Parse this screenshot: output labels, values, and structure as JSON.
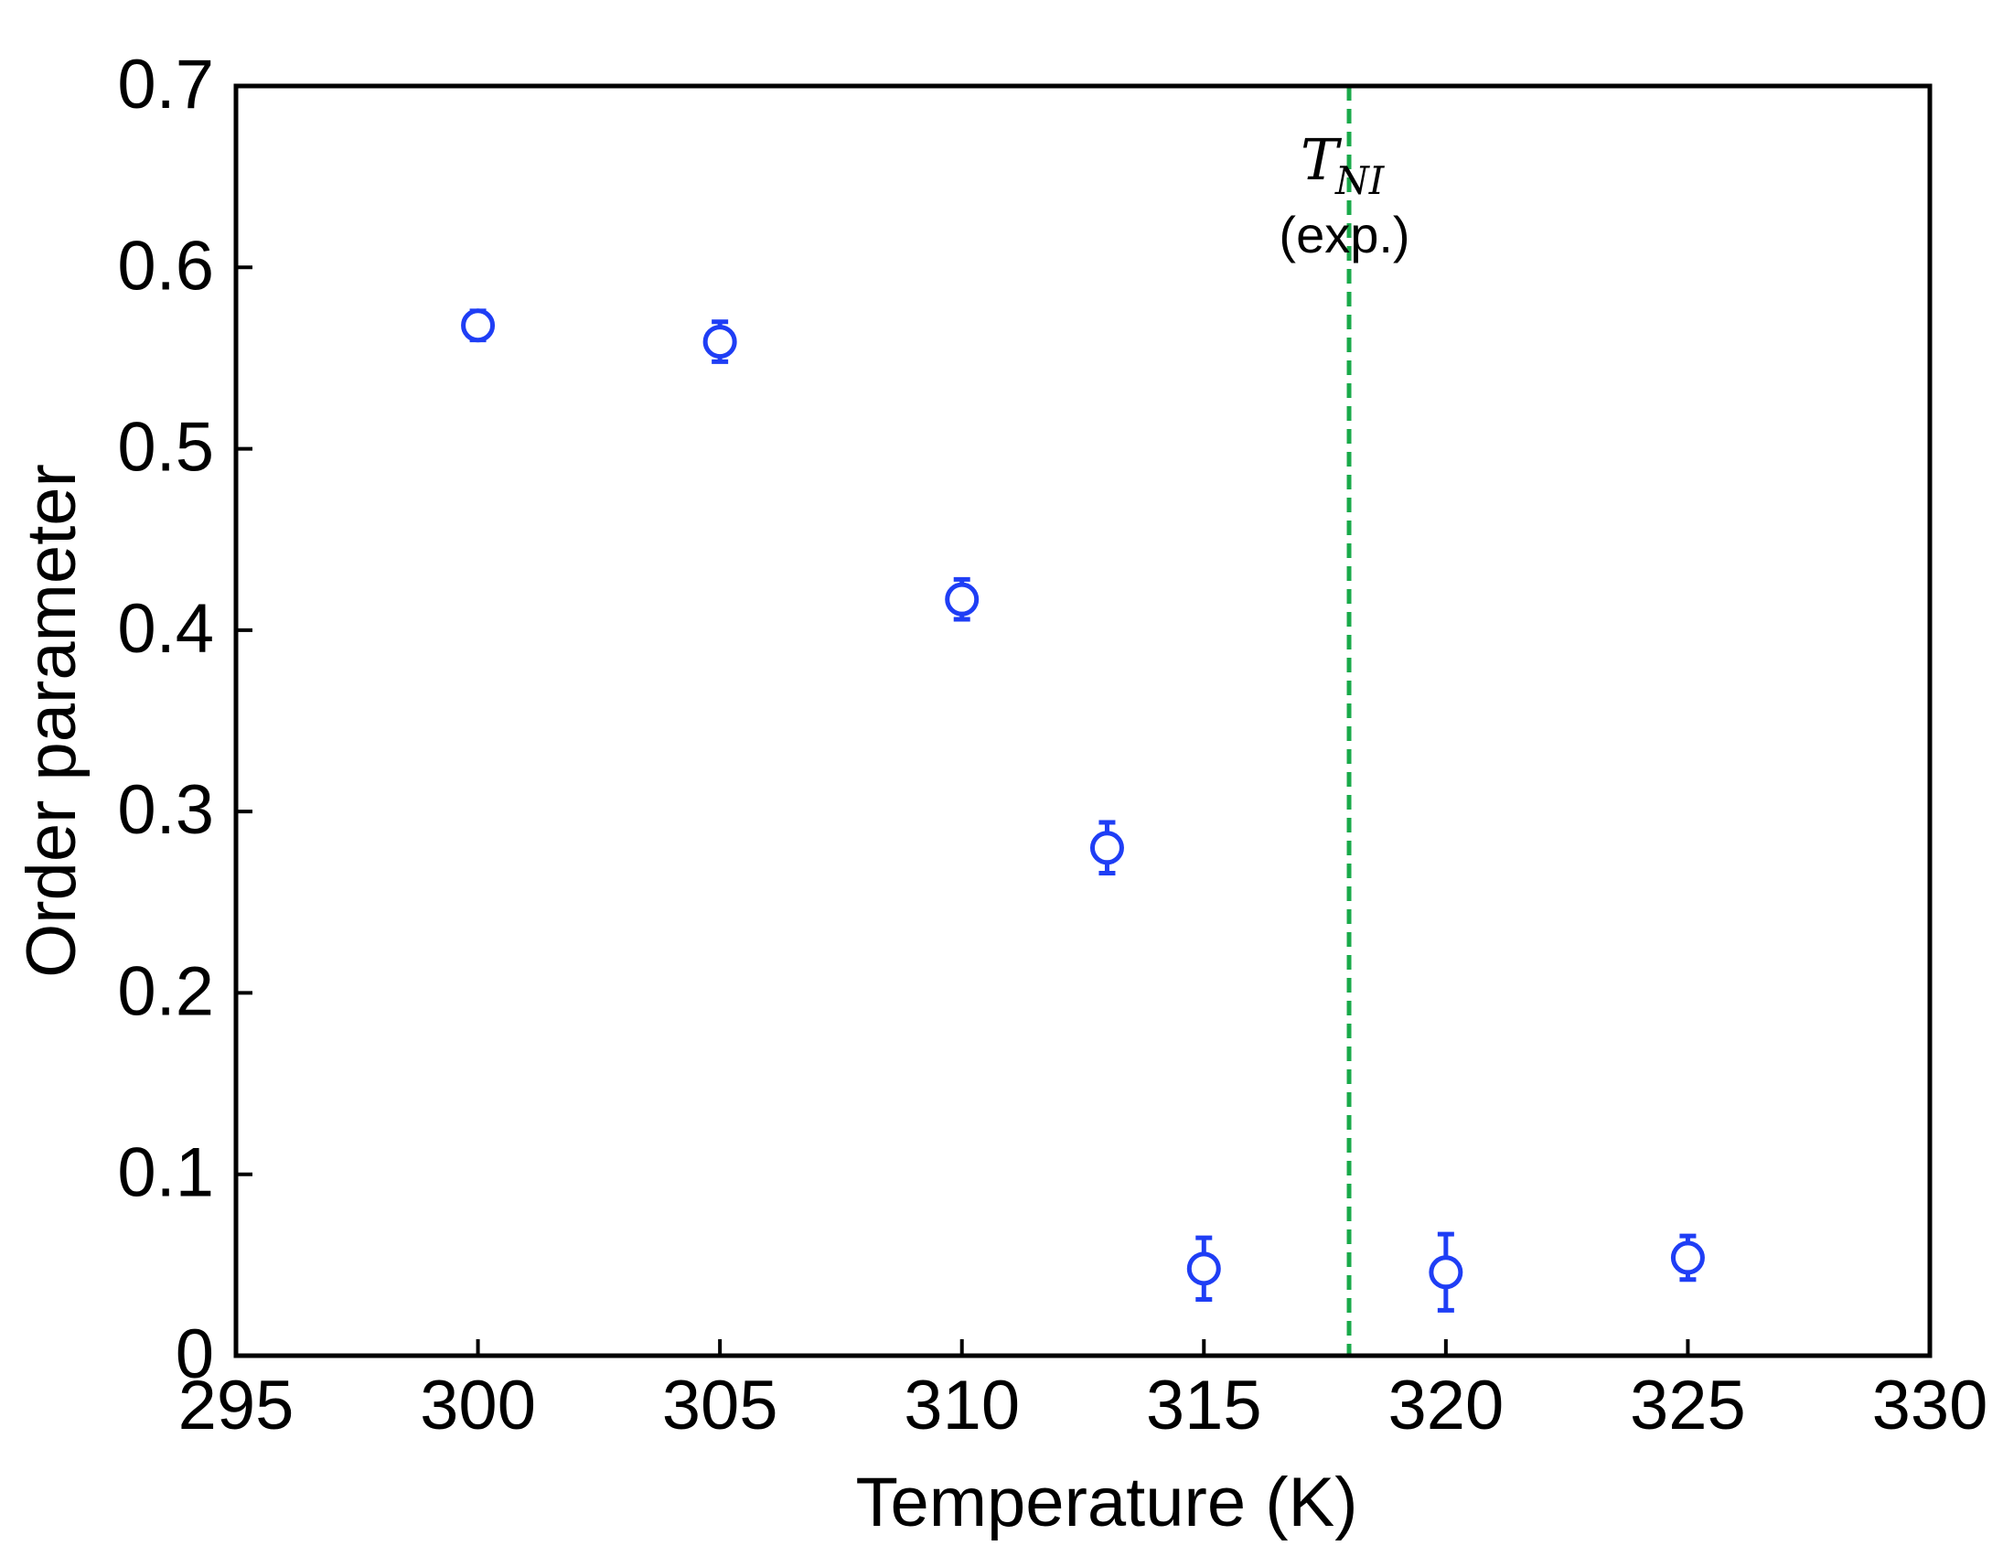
{
  "chart_data": {
    "type": "scatter",
    "xlabel": "Temperature (K)",
    "ylabel": "Order parameter",
    "xlim": [
      295,
      330
    ],
    "ylim": [
      0,
      0.7
    ],
    "xticks": [
      "295",
      "300",
      "305",
      "310",
      "315",
      "320",
      "325",
      "330"
    ],
    "yticks": [
      "0",
      "0.1",
      "0.2",
      "0.3",
      "0.4",
      "0.5",
      "0.6",
      "0.7"
    ],
    "grid": false,
    "series": [
      {
        "marker": "open-circle",
        "color": "#1f3ef5",
        "points": [
          {
            "x": 300,
            "y": 0.568,
            "err": 0.008
          },
          {
            "x": 305,
            "y": 0.559,
            "err": 0.011
          },
          {
            "x": 310,
            "y": 0.417,
            "err": 0.011
          },
          {
            "x": 313,
            "y": 0.28,
            "err": 0.014
          },
          {
            "x": 315,
            "y": 0.048,
            "err": 0.017
          },
          {
            "x": 320,
            "y": 0.046,
            "err": 0.021
          },
          {
            "x": 325,
            "y": 0.054,
            "err": 0.012
          }
        ]
      }
    ],
    "reference_line": {
      "x": 318,
      "color": "#1aaa4a",
      "style": "dashed",
      "label_symbol": "T",
      "label_subscript": "NI",
      "label_note": "(exp.)"
    }
  }
}
